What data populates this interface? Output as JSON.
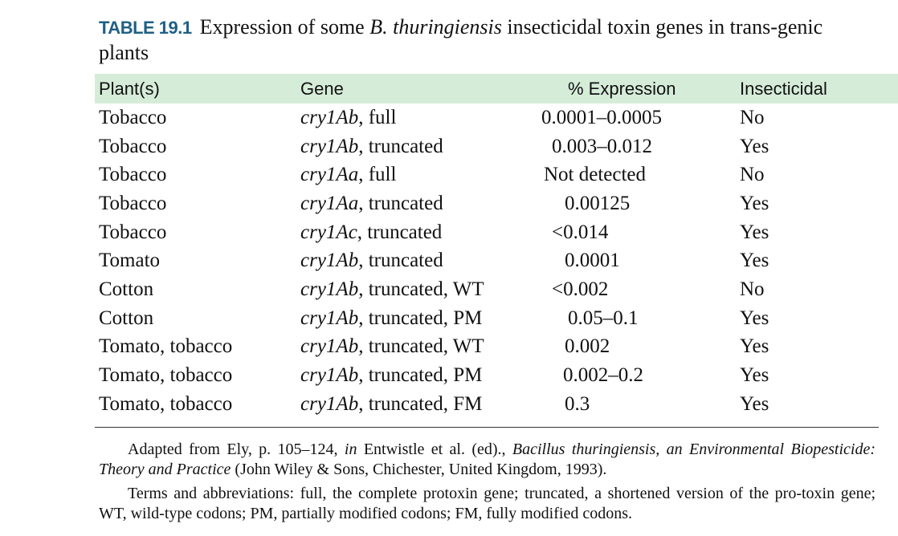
{
  "caption": {
    "label": "TABLE 19.1",
    "text_pre": "Expression of some ",
    "text_italic": "B. thuringiensis",
    "text_post": " insecticidal toxin genes in trans-genic plants"
  },
  "table": {
    "headers": [
      "Plant(s)",
      "Gene",
      "% Expression",
      "Insecticidal"
    ],
    "rows": [
      {
        "plant": "Tobacco",
        "gene_name": "cry1Ab",
        "gene_desc": ", full",
        "expression": "0.0001–0.0005",
        "insecticidal": "No",
        "indent": 0
      },
      {
        "plant": "Tobacco",
        "gene_name": "cry1Ab",
        "gene_desc": ", truncated",
        "expression": "0.003–0.012",
        "insecticidal": "Yes",
        "indent": 13
      },
      {
        "plant": "Tobacco",
        "gene_name": "cry1Aa",
        "gene_desc": ", full",
        "expression": "Not detected",
        "insecticidal": "No",
        "indent": 3
      },
      {
        "plant": "Tobacco",
        "gene_name": "cry1Aa",
        "gene_desc": ", truncated",
        "expression": "0.00125",
        "insecticidal": "Yes",
        "indent": 29
      },
      {
        "plant": "Tobacco",
        "gene_name": "cry1Ac",
        "gene_desc": ", truncated",
        "expression": "<0.014",
        "insecticidal": "Yes",
        "indent": 13
      },
      {
        "plant": "Tomato",
        "gene_name": "cry1Ab",
        "gene_desc": ", truncated",
        "expression": "0.0001",
        "insecticidal": "Yes",
        "indent": 29
      },
      {
        "plant": "Cotton",
        "gene_name": "cry1Ab",
        "gene_desc": ", truncated, WT",
        "expression": "<0.002",
        "insecticidal": "No",
        "indent": 13
      },
      {
        "plant": "Cotton",
        "gene_name": "cry1Ab",
        "gene_desc": ", truncated, PM",
        "expression": "0.05–0.1",
        "insecticidal": "Yes",
        "indent": 33
      },
      {
        "plant": "Tomato, tobacco",
        "gene_name": "cry1Ab",
        "gene_desc": ", truncated, WT",
        "expression": "0.002",
        "insecticidal": "Yes",
        "indent": 29
      },
      {
        "plant": "Tomato, tobacco",
        "gene_name": "cry1Ab",
        "gene_desc": ", truncated, PM",
        "expression": "0.002–0.2",
        "insecticidal": "Yes",
        "indent": 27
      },
      {
        "plant": "Tomato, tobacco",
        "gene_name": "cry1Ab",
        "gene_desc": ", truncated, FM",
        "expression": "0.3",
        "insecticidal": "Yes",
        "indent": 29
      }
    ]
  },
  "notes": {
    "source": {
      "part1": "Adapted from Ely, p. 105–124, ",
      "part2_italic": "in",
      "part3": " Entwistle et al. (ed)., ",
      "part4_italic": "Bacillus thuringiensis, an Environmental Biopesticide: Theory and Practice",
      "part5": " (John Wiley & Sons, Chichester, United Kingdom, 1993)."
    },
    "abbreviations": "Terms and abbreviations: full, the complete protoxin gene; truncated, a shortened version of the pro-toxin gene; WT, wild-type codons; PM, partially modified codons; FM, fully modified codons."
  },
  "colors": {
    "caption_label": "#1f5f86",
    "header_background": "#d5ecd9"
  }
}
